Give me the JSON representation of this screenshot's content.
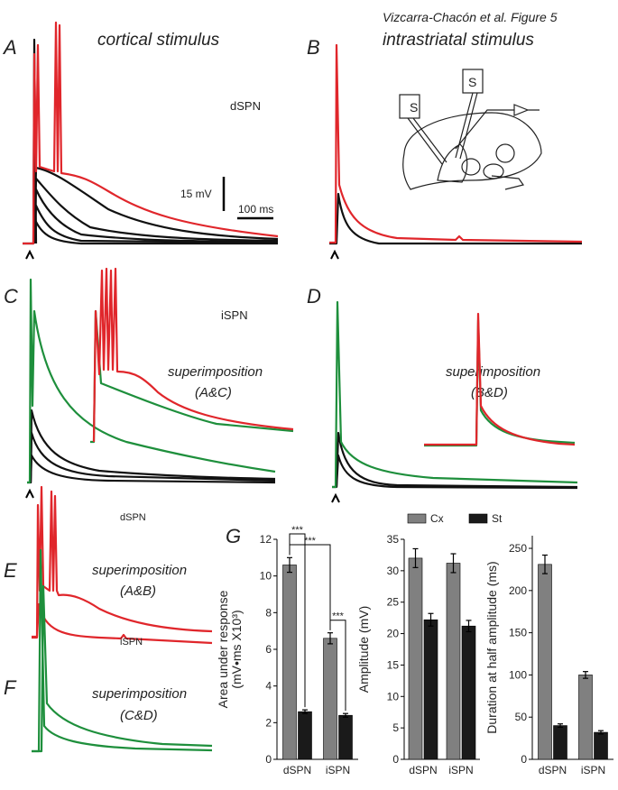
{
  "figure": {
    "credit": "Vizcarra-Chacón et al. Figure 5",
    "a": {
      "letter": "A",
      "title": "cortical stimulus",
      "cell": "dSPN",
      "scale_v": "15 mV",
      "scale_t": "100 ms"
    },
    "b": {
      "letter": "B",
      "title": "intrastriatal stimulus",
      "electrode1": "S",
      "electrode2": "S"
    },
    "c": {
      "letter": "C",
      "cell": "iSPN",
      "note": "superimposition",
      "pair": "(A&C)"
    },
    "d": {
      "letter": "D",
      "note": "superimposition",
      "pair": "(B&D)"
    },
    "e": {
      "letter": "E",
      "cell": "dSPN",
      "note": "superimposition",
      "pair": "(A&B)"
    },
    "f": {
      "letter": "F",
      "cell": "iSPN",
      "note": "superimposition",
      "pair": "(C&D)"
    },
    "g": {
      "letter": "G"
    }
  },
  "chart_data": [
    {
      "type": "bar",
      "ylabel": [
        "Area under response",
        "(mV•ms X10³)"
      ],
      "categories": [
        "dSPN",
        "iSPN"
      ],
      "series": [
        {
          "color": "#808080",
          "values": [
            10.6,
            6.6
          ],
          "errors": [
            0.4,
            0.3
          ]
        },
        {
          "color": "#1a1a1a",
          "values": [
            2.6,
            2.4
          ],
          "errors": [
            0.1,
            0.1
          ]
        }
      ],
      "ylim": [
        0,
        12
      ],
      "yticks": [
        0,
        2,
        4,
        6,
        8,
        10,
        12
      ],
      "annotations": [
        "***",
        "***",
        "***"
      ]
    },
    {
      "type": "bar",
      "ylabel": "Amplitude (mV)",
      "categories": [
        "dSPN",
        "iSPN"
      ],
      "series": [
        {
          "name": "Cx",
          "color": "#808080",
          "values": [
            32,
            31.2
          ],
          "errors": [
            1.5,
            1.5
          ]
        },
        {
          "name": "St",
          "color": "#1a1a1a",
          "values": [
            22.2,
            21.2
          ],
          "errors": [
            1,
            0.9
          ]
        }
      ],
      "ylim": [
        0,
        35
      ],
      "yticks": [
        0,
        5,
        10,
        15,
        20,
        25,
        30,
        35
      ]
    },
    {
      "type": "bar",
      "ylabel": "Duration at half amplitude (ms)",
      "categories": [
        "dSPN",
        "iSPN"
      ],
      "series": [
        {
          "color": "#808080",
          "values": [
            231,
            100
          ],
          "errors": [
            11,
            4
          ]
        },
        {
          "color": "#1a1a1a",
          "values": [
            40,
            32
          ],
          "errors": [
            2,
            2
          ]
        }
      ],
      "ylim": [
        0,
        265
      ],
      "yticks": [
        0,
        50,
        100,
        150,
        200,
        250
      ]
    }
  ]
}
